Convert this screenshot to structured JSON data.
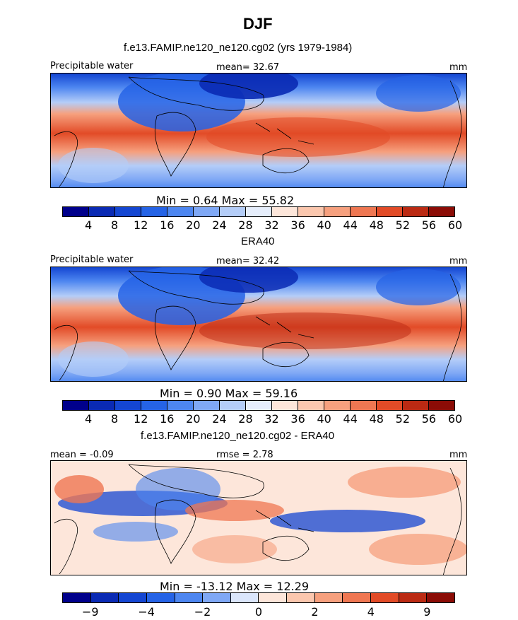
{
  "figure": {
    "title": "DJF"
  },
  "chart_data": [
    {
      "type": "heatmap",
      "title": "f.e13.FAMIP.ne120_ne120.cg02 (yrs 1979-1984)",
      "field_label": "Precipitable water",
      "mean_text": "mean=  32.67",
      "units": "mm",
      "min": 0.64,
      "max": 55.82,
      "minmax_text": "Min =    0.64  Max =   55.82",
      "colorbar": {
        "levels": [
          4,
          8,
          12,
          16,
          20,
          24,
          28,
          32,
          36,
          40,
          44,
          48,
          52,
          56,
          60
        ],
        "tick_labels": [
          "4",
          "8",
          "12",
          "16",
          "20",
          "24",
          "28",
          "32",
          "36",
          "40",
          "44",
          "48",
          "52",
          "56",
          "60"
        ],
        "colors": [
          "#00008b",
          "#0a2ab4",
          "#1446d2",
          "#2563e6",
          "#4d86f0",
          "#7fa8f5",
          "#b4cdf8",
          "#e6eefc",
          "#fde6da",
          "#fbc7ae",
          "#f6a07e",
          "#ef7752",
          "#e24b27",
          "#bb2a13",
          "#8b0c06"
        ]
      }
    },
    {
      "type": "heatmap",
      "title": "ERA40",
      "field_label": "Precipitable water",
      "mean_text": "mean=  32.42",
      "units": "mm",
      "min": 0.9,
      "max": 59.16,
      "minmax_text": "Min =    0.90  Max =   59.16",
      "colorbar": {
        "levels": [
          4,
          8,
          12,
          16,
          20,
          24,
          28,
          32,
          36,
          40,
          44,
          48,
          52,
          56,
          60
        ],
        "tick_labels": [
          "4",
          "8",
          "12",
          "16",
          "20",
          "24",
          "28",
          "32",
          "36",
          "40",
          "44",
          "48",
          "52",
          "56",
          "60"
        ],
        "colors": [
          "#00008b",
          "#0a2ab4",
          "#1446d2",
          "#2563e6",
          "#4d86f0",
          "#7fa8f5",
          "#b4cdf8",
          "#e6eefc",
          "#fde6da",
          "#fbc7ae",
          "#f6a07e",
          "#ef7752",
          "#e24b27",
          "#bb2a13",
          "#8b0c06"
        ]
      }
    },
    {
      "type": "heatmap",
      "title": "f.e13.FAMIP.ne120_ne120.cg02 - ERA40",
      "mean_text": "mean =  -0.09",
      "rmse_text": "rmse =    2.78",
      "units": "mm",
      "min": -13.12,
      "max": 12.29,
      "minmax_text": "Min = -13.12  Max =   12.29",
      "colorbar": {
        "levels": [
          -9,
          -6,
          -4,
          -3,
          -2,
          -1,
          0,
          1,
          2,
          3,
          4,
          6,
          9
        ],
        "tick_labels": [
          "-9",
          "-4",
          "-2",
          "0",
          "2",
          "4",
          "9"
        ],
        "colors": [
          "#00008b",
          "#0a2ab4",
          "#1446d2",
          "#2563e6",
          "#4d86f0",
          "#7fa8f5",
          "#dbe6fb",
          "#fde6da",
          "#fbc7ae",
          "#f6a07e",
          "#ef7752",
          "#e24b27",
          "#bb2a13",
          "#8b0c06"
        ]
      }
    }
  ]
}
